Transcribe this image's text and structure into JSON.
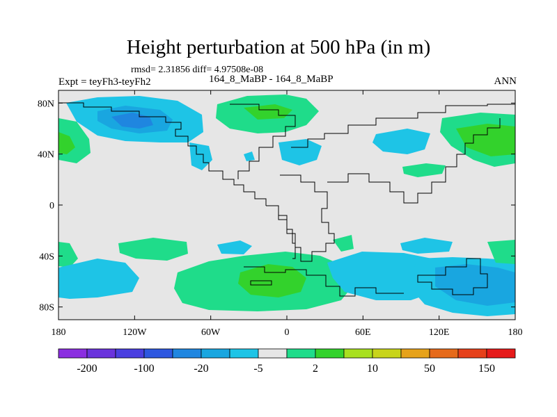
{
  "title": "Height perturbation at 500 hPa (in m)",
  "stats": "rmsd= 2.31856 diff= 4.97508e-08",
  "left_label": "Expt = teyFh3-teyFh2",
  "center_label": "164_8_MaBP - 164_8_MaBP",
  "right_label": "ANN",
  "lat_ticks": [
    {
      "label": "80N",
      "lat": 80
    },
    {
      "label": "40N",
      "lat": 40
    },
    {
      "label": "0",
      "lat": 0
    },
    {
      "label": "40S",
      "lat": -40
    },
    {
      "label": "80S",
      "lat": -80
    }
  ],
  "lon_ticks": [
    {
      "label": "180",
      "lon": -180
    },
    {
      "label": "120W",
      "lon": -120
    },
    {
      "label": "60W",
      "lon": -60
    },
    {
      "label": "0",
      "lon": 0
    },
    {
      "label": "60E",
      "lon": 60
    },
    {
      "label": "120E",
      "lon": 120
    },
    {
      "label": "180",
      "lon": 180
    }
  ],
  "colorbar": {
    "colors": [
      "#8b2ee0",
      "#6a33dc",
      "#4a3fe0",
      "#2d57e0",
      "#1f86e0",
      "#19a6e0",
      "#1ec4e6",
      "#e6e6e6",
      "#1fdc8a",
      "#33d22c",
      "#a8e01f",
      "#c8d41a",
      "#e6a21a",
      "#e66a1a",
      "#e6401a",
      "#e61a1a"
    ],
    "labels": [
      {
        "text": "-200",
        "boundary": 1
      },
      {
        "text": "-100",
        "boundary": 3
      },
      {
        "text": "-20",
        "boundary": 5
      },
      {
        "text": "-5",
        "boundary": 7
      },
      {
        "text": "2",
        "boundary": 9
      },
      {
        "text": "10",
        "boundary": 11
      },
      {
        "text": "50",
        "boundary": 13
      },
      {
        "text": "150",
        "boundary": 15
      }
    ]
  },
  "colors": {
    "background": "#e6e6e6",
    "negative_light": "#1ec4e6",
    "negative_mid": "#19a6e0",
    "positive_light": "#1fdc8a",
    "positive_mid": "#33d22c"
  },
  "map": {
    "projection": "cylindrical equidistant",
    "lon_range": [
      -180,
      180
    ],
    "lat_range": [
      -90,
      90
    ]
  }
}
